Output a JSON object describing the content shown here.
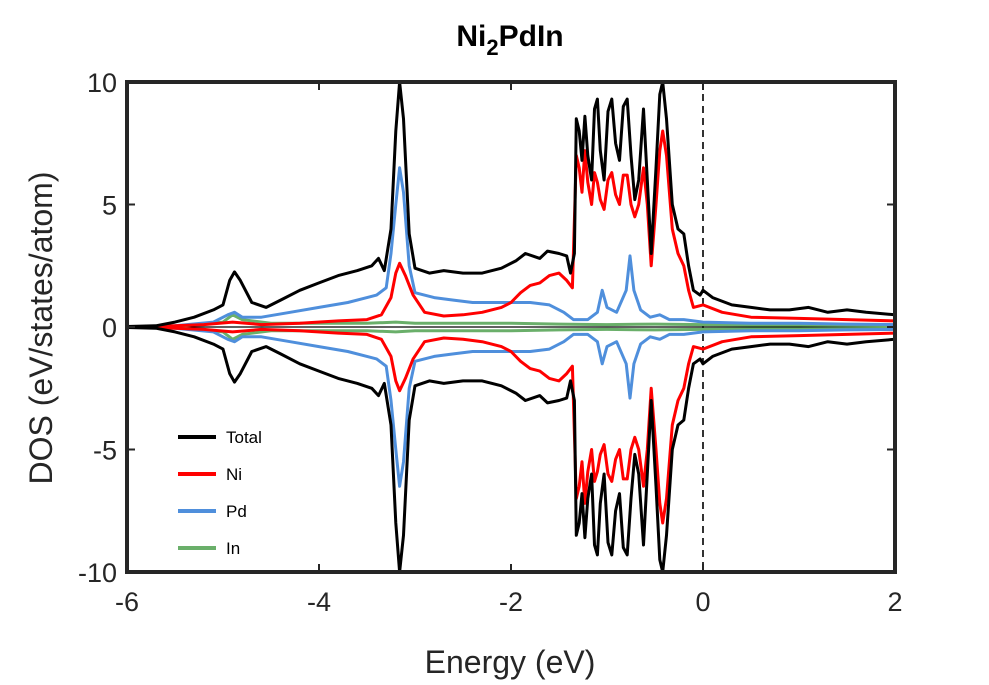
{
  "chart_data": {
    "type": "line",
    "title": {
      "main": "Ni",
      "sub": "2",
      "tail": "PdIn"
    },
    "xlabel": "Energy (eV)",
    "ylabel": "DOS (eV/states/atom)",
    "xlim": [
      -6,
      2
    ],
    "ylim": [
      -10,
      10
    ],
    "xticks": [
      -6,
      -4,
      -2,
      0,
      2
    ],
    "yticks": [
      -10,
      -5,
      0,
      5,
      10
    ],
    "xtick_labels": [
      "-6",
      "-4",
      "-2",
      "0",
      "2"
    ],
    "ytick_labels": [
      "-10",
      "-5",
      "0",
      "5",
      "10"
    ],
    "fermi_level": 0,
    "grid": false,
    "legend_position": "bottom-left",
    "mirrored_spin_down": true,
    "series": [
      {
        "name": "Total",
        "color": "#000000",
        "points": [
          [
            -6.0,
            0.02
          ],
          [
            -5.7,
            0.05
          ],
          [
            -5.5,
            0.2
          ],
          [
            -5.3,
            0.4
          ],
          [
            -5.1,
            0.7
          ],
          [
            -5.0,
            0.9
          ],
          [
            -4.93,
            1.9
          ],
          [
            -4.88,
            2.25
          ],
          [
            -4.82,
            1.9
          ],
          [
            -4.7,
            1.0
          ],
          [
            -4.55,
            0.8
          ],
          [
            -4.4,
            1.1
          ],
          [
            -4.2,
            1.5
          ],
          [
            -4.0,
            1.8
          ],
          [
            -3.8,
            2.1
          ],
          [
            -3.6,
            2.3
          ],
          [
            -3.45,
            2.5
          ],
          [
            -3.38,
            2.8
          ],
          [
            -3.32,
            2.3
          ],
          [
            -3.25,
            4.0
          ],
          [
            -3.2,
            8.0
          ],
          [
            -3.16,
            10.0
          ],
          [
            -3.12,
            8.5
          ],
          [
            -3.06,
            3.8
          ],
          [
            -3.0,
            2.4
          ],
          [
            -2.85,
            2.2
          ],
          [
            -2.7,
            2.3
          ],
          [
            -2.5,
            2.2
          ],
          [
            -2.3,
            2.2
          ],
          [
            -2.1,
            2.4
          ],
          [
            -1.95,
            2.7
          ],
          [
            -1.85,
            3.0
          ],
          [
            -1.7,
            2.8
          ],
          [
            -1.62,
            3.1
          ],
          [
            -1.5,
            3.0
          ],
          [
            -1.42,
            2.9
          ],
          [
            -1.38,
            2.2
          ],
          [
            -1.34,
            3.0
          ],
          [
            -1.32,
            8.5
          ],
          [
            -1.29,
            8.0
          ],
          [
            -1.26,
            6.8
          ],
          [
            -1.23,
            8.6
          ],
          [
            -1.2,
            7.0
          ],
          [
            -1.16,
            6.0
          ],
          [
            -1.13,
            8.9
          ],
          [
            -1.1,
            9.3
          ],
          [
            -1.07,
            7.2
          ],
          [
            -1.03,
            6.0
          ],
          [
            -0.99,
            8.8
          ],
          [
            -0.95,
            9.3
          ],
          [
            -0.91,
            7.5
          ],
          [
            -0.87,
            6.8
          ],
          [
            -0.83,
            9.0
          ],
          [
            -0.79,
            9.3
          ],
          [
            -0.75,
            7.0
          ],
          [
            -0.71,
            5.2
          ],
          [
            -0.67,
            6.0
          ],
          [
            -0.62,
            8.9
          ],
          [
            -0.58,
            6.0
          ],
          [
            -0.54,
            3.0
          ],
          [
            -0.49,
            6.5
          ],
          [
            -0.45,
            9.5
          ],
          [
            -0.42,
            10.0
          ],
          [
            -0.38,
            8.5
          ],
          [
            -0.32,
            5.0
          ],
          [
            -0.26,
            4.0
          ],
          [
            -0.2,
            3.8
          ],
          [
            -0.15,
            2.5
          ],
          [
            -0.1,
            1.5
          ],
          [
            -0.03,
            1.3
          ],
          [
            0.0,
            1.5
          ],
          [
            0.1,
            1.2
          ],
          [
            0.3,
            0.9
          ],
          [
            0.5,
            0.8
          ],
          [
            0.7,
            0.7
          ],
          [
            0.9,
            0.7
          ],
          [
            1.1,
            0.8
          ],
          [
            1.3,
            0.6
          ],
          [
            1.5,
            0.7
          ],
          [
            1.7,
            0.6
          ],
          [
            2.0,
            0.5
          ]
        ]
      },
      {
        "name": "Ni",
        "color": "#ff0000",
        "points": [
          [
            -6.0,
            0.0
          ],
          [
            -5.5,
            0.05
          ],
          [
            -5.2,
            0.1
          ],
          [
            -4.9,
            0.2
          ],
          [
            -4.6,
            0.1
          ],
          [
            -4.2,
            0.15
          ],
          [
            -3.8,
            0.25
          ],
          [
            -3.5,
            0.3
          ],
          [
            -3.35,
            0.5
          ],
          [
            -3.25,
            1.2
          ],
          [
            -3.2,
            2.2
          ],
          [
            -3.16,
            2.6
          ],
          [
            -3.1,
            2.1
          ],
          [
            -3.02,
            1.3
          ],
          [
            -2.9,
            0.6
          ],
          [
            -2.7,
            0.45
          ],
          [
            -2.5,
            0.5
          ],
          [
            -2.3,
            0.6
          ],
          [
            -2.1,
            0.8
          ],
          [
            -2.0,
            1.0
          ],
          [
            -1.9,
            1.4
          ],
          [
            -1.8,
            1.7
          ],
          [
            -1.7,
            1.8
          ],
          [
            -1.6,
            2.1
          ],
          [
            -1.5,
            2.2
          ],
          [
            -1.42,
            1.9
          ],
          [
            -1.36,
            1.6
          ],
          [
            -1.32,
            7.0
          ],
          [
            -1.29,
            6.5
          ],
          [
            -1.26,
            5.5
          ],
          [
            -1.23,
            7.2
          ],
          [
            -1.2,
            5.9
          ],
          [
            -1.16,
            5.0
          ],
          [
            -1.13,
            6.3
          ],
          [
            -1.1,
            5.9
          ],
          [
            -1.07,
            5.2
          ],
          [
            -1.03,
            4.8
          ],
          [
            -0.99,
            6.0
          ],
          [
            -0.95,
            6.3
          ],
          [
            -0.91,
            5.4
          ],
          [
            -0.87,
            5.0
          ],
          [
            -0.83,
            6.2
          ],
          [
            -0.79,
            6.2
          ],
          [
            -0.75,
            5.0
          ],
          [
            -0.71,
            4.5
          ],
          [
            -0.67,
            5.0
          ],
          [
            -0.62,
            6.5
          ],
          [
            -0.58,
            5.0
          ],
          [
            -0.54,
            2.5
          ],
          [
            -0.49,
            5.0
          ],
          [
            -0.45,
            7.2
          ],
          [
            -0.42,
            8.0
          ],
          [
            -0.38,
            7.0
          ],
          [
            -0.32,
            4.0
          ],
          [
            -0.26,
            3.0
          ],
          [
            -0.2,
            2.5
          ],
          [
            -0.15,
            1.5
          ],
          [
            -0.1,
            0.8
          ],
          [
            0.0,
            0.9
          ],
          [
            0.2,
            0.6
          ],
          [
            0.5,
            0.4
          ],
          [
            1.0,
            0.35
          ],
          [
            1.5,
            0.3
          ],
          [
            2.0,
            0.25
          ]
        ]
      },
      {
        "name": "Pd",
        "color": "#4f8fdc",
        "points": [
          [
            -6.0,
            0.0
          ],
          [
            -5.5,
            0.05
          ],
          [
            -5.1,
            0.2
          ],
          [
            -4.95,
            0.5
          ],
          [
            -4.88,
            0.6
          ],
          [
            -4.8,
            0.4
          ],
          [
            -4.6,
            0.4
          ],
          [
            -4.3,
            0.6
          ],
          [
            -4.0,
            0.8
          ],
          [
            -3.7,
            1.0
          ],
          [
            -3.5,
            1.2
          ],
          [
            -3.4,
            1.3
          ],
          [
            -3.3,
            1.6
          ],
          [
            -3.25,
            3.0
          ],
          [
            -3.2,
            5.0
          ],
          [
            -3.16,
            6.5
          ],
          [
            -3.12,
            5.5
          ],
          [
            -3.06,
            2.5
          ],
          [
            -3.0,
            1.4
          ],
          [
            -2.8,
            1.2
          ],
          [
            -2.6,
            1.1
          ],
          [
            -2.4,
            1.0
          ],
          [
            -2.2,
            1.0
          ],
          [
            -2.0,
            1.0
          ],
          [
            -1.8,
            1.0
          ],
          [
            -1.6,
            0.9
          ],
          [
            -1.45,
            0.6
          ],
          [
            -1.35,
            0.3
          ],
          [
            -1.2,
            0.3
          ],
          [
            -1.1,
            0.6
          ],
          [
            -1.05,
            1.5
          ],
          [
            -1.0,
            0.8
          ],
          [
            -0.9,
            0.6
          ],
          [
            -0.8,
            1.5
          ],
          [
            -0.76,
            2.9
          ],
          [
            -0.72,
            1.5
          ],
          [
            -0.65,
            0.7
          ],
          [
            -0.55,
            0.4
          ],
          [
            -0.45,
            0.5
          ],
          [
            -0.35,
            0.3
          ],
          [
            -0.2,
            0.3
          ],
          [
            0.0,
            0.2
          ],
          [
            0.5,
            0.15
          ],
          [
            1.0,
            0.15
          ],
          [
            1.5,
            0.12
          ],
          [
            2.0,
            0.1
          ]
        ]
      },
      {
        "name": "In",
        "color": "#6aaf6a",
        "points": [
          [
            -6.0,
            0.0
          ],
          [
            -5.5,
            0.02
          ],
          [
            -5.0,
            0.2
          ],
          [
            -4.9,
            0.5
          ],
          [
            -4.8,
            0.3
          ],
          [
            -4.5,
            0.15
          ],
          [
            -4.0,
            0.15
          ],
          [
            -3.5,
            0.15
          ],
          [
            -3.2,
            0.2
          ],
          [
            -3.0,
            0.15
          ],
          [
            -2.5,
            0.15
          ],
          [
            -2.0,
            0.15
          ],
          [
            -1.5,
            0.12
          ],
          [
            -1.0,
            0.1
          ],
          [
            -0.5,
            0.12
          ],
          [
            0.0,
            0.1
          ],
          [
            0.5,
            0.08
          ],
          [
            1.0,
            0.08
          ],
          [
            1.5,
            0.07
          ],
          [
            2.0,
            0.06
          ]
        ]
      }
    ]
  }
}
